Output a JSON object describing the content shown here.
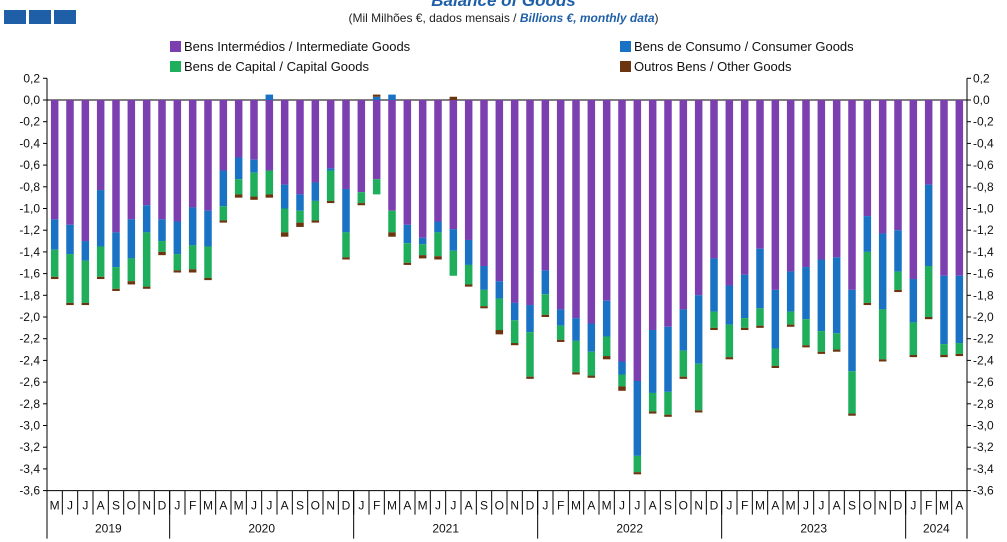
{
  "header": {
    "title": "Balance of Goods",
    "subtitle_pt": "(Mil Milhões €, dados mensais / ",
    "subtitle_en": "Billions €, monthly data",
    "subtitle_close": ")"
  },
  "colors": {
    "brand": "#1f5fa8",
    "title": "#1f5fa8",
    "intermediate": "#7b3fb0",
    "consumer": "#1a72c4",
    "capital": "#1fae5b",
    "other": "#6b3510",
    "axis": "#000000",
    "grid": "#dddddd"
  },
  "chart_data": {
    "type": "bar",
    "stacked": true,
    "ylim": [
      -3.6,
      0.2
    ],
    "yticks": [
      "0,2",
      "0,0",
      "-0,2",
      "-0,4",
      "-0,6",
      "-0,8",
      "-1,0",
      "-1,2",
      "-1,4",
      "-1,6",
      "-1,8",
      "-2,0",
      "-2,2",
      "-2,4",
      "-2,6",
      "-2,8",
      "-3,0",
      "-3,2",
      "-3,4",
      "-3,6"
    ],
    "ytick_values": [
      0.2,
      0.0,
      -0.2,
      -0.4,
      -0.6,
      -0.8,
      -1.0,
      -1.2,
      -1.4,
      -1.6,
      -1.8,
      -2.0,
      -2.2,
      -2.4,
      -2.6,
      -2.8,
      -3.0,
      -3.2,
      -3.4,
      -3.6
    ],
    "legend_position": "top",
    "grid": false,
    "categories": [
      "M",
      "J",
      "J",
      "A",
      "S",
      "O",
      "N",
      "D",
      "J",
      "F",
      "M",
      "A",
      "M",
      "J",
      "J",
      "A",
      "S",
      "O",
      "N",
      "D",
      "J",
      "F",
      "M",
      "A",
      "M",
      "J",
      "J",
      "A",
      "S",
      "O",
      "N",
      "D",
      "J",
      "F",
      "M",
      "A",
      "M",
      "J",
      "J",
      "A",
      "S",
      "O",
      "N",
      "D",
      "J",
      "F",
      "M",
      "A",
      "M",
      "J",
      "J",
      "A",
      "S",
      "O",
      "N",
      "D",
      "J",
      "F",
      "M",
      "A"
    ],
    "years": [
      {
        "label": "2019",
        "count": 8
      },
      {
        "label": "2020",
        "count": 12
      },
      {
        "label": "2021",
        "count": 12
      },
      {
        "label": "2022",
        "count": 12
      },
      {
        "label": "2023",
        "count": 12
      },
      {
        "label": "2024",
        "count": 4
      }
    ],
    "series": [
      {
        "name": "Bens Intermédios / Intermediate Goods",
        "color": "#7b3fb0",
        "values": [
          -1.1,
          -1.15,
          -1.3,
          -0.83,
          -1.22,
          -1.1,
          -0.97,
          -1.1,
          -1.12,
          -0.99,
          -1.02,
          -0.65,
          -0.53,
          -0.55,
          -0.65,
          -0.78,
          -0.87,
          -0.76,
          -0.63,
          -0.82,
          -0.85,
          -0.73,
          -1.02,
          -1.15,
          -1.27,
          -1.12,
          -1.19,
          -1.29,
          -1.53,
          -1.67,
          -1.87,
          -1.89,
          -1.57,
          -1.93,
          -2.01,
          -2.06,
          -1.85,
          -2.41,
          -2.59,
          -2.12,
          -2.09,
          -1.93,
          -1.8,
          -1.46,
          -1.71,
          -1.61,
          -1.37,
          -1.75,
          -1.58,
          -1.54,
          -1.47,
          -1.45,
          -1.75,
          -1.07,
          -1.23,
          -1.2,
          -1.65,
          -0.78,
          -1.62,
          -1.62
        ]
      },
      {
        "name": "Bens de Consumo / Consumer Goods",
        "color": "#1a72c4",
        "values": [
          -0.28,
          -0.27,
          -0.18,
          -0.52,
          -0.32,
          -0.36,
          -0.25,
          -0.2,
          -0.3,
          -0.35,
          -0.33,
          -0.33,
          -0.2,
          -0.12,
          0.05,
          -0.22,
          -0.15,
          -0.17,
          -0.02,
          -0.4,
          0.0,
          0.03,
          0.05,
          -0.17,
          -0.06,
          -0.1,
          -0.2,
          -0.23,
          -0.22,
          -0.16,
          -0.16,
          -0.25,
          -0.22,
          -0.15,
          -0.21,
          -0.26,
          -0.33,
          -0.12,
          -0.69,
          -0.58,
          -0.6,
          -0.38,
          -0.63,
          -0.49,
          -0.36,
          -0.4,
          -0.55,
          -0.54,
          -0.37,
          -0.48,
          -0.66,
          -0.7,
          -0.75,
          -0.33,
          -0.7,
          -0.38,
          -0.4,
          -0.75,
          -0.63,
          -0.62
        ]
      },
      {
        "name": "Bens de Capital / Capital Goods",
        "color": "#1fae5b",
        "values": [
          -0.25,
          -0.45,
          -0.39,
          -0.28,
          -0.2,
          -0.21,
          -0.5,
          -0.1,
          -0.15,
          -0.22,
          -0.29,
          -0.13,
          -0.14,
          -0.22,
          -0.22,
          -0.22,
          -0.11,
          -0.18,
          -0.28,
          -0.23,
          -0.1,
          -0.14,
          -0.2,
          -0.18,
          -0.1,
          -0.22,
          -0.23,
          -0.18,
          -0.15,
          -0.29,
          -0.21,
          -0.41,
          -0.19,
          -0.13,
          -0.29,
          -0.22,
          -0.18,
          -0.11,
          -0.15,
          -0.17,
          -0.21,
          -0.24,
          -0.43,
          -0.15,
          -0.3,
          -0.09,
          -0.16,
          -0.16,
          -0.12,
          -0.24,
          -0.19,
          -0.15,
          -0.39,
          -0.47,
          -0.46,
          -0.17,
          -0.3,
          -0.47,
          -0.1,
          -0.1
        ]
      },
      {
        "name": "Outros Bens / Other Goods",
        "color": "#6b3510",
        "values": [
          -0.02,
          -0.02,
          -0.02,
          -0.02,
          -0.02,
          -0.03,
          -0.02,
          -0.03,
          -0.02,
          -0.03,
          -0.02,
          -0.02,
          -0.03,
          -0.03,
          -0.03,
          -0.04,
          -0.04,
          -0.02,
          -0.02,
          -0.02,
          -0.02,
          0.02,
          -0.04,
          -0.02,
          -0.03,
          -0.03,
          0.03,
          -0.02,
          -0.02,
          -0.04,
          -0.02,
          -0.02,
          -0.02,
          -0.02,
          -0.02,
          -0.02,
          -0.03,
          -0.04,
          -0.02,
          -0.02,
          -0.02,
          -0.02,
          -0.02,
          -0.02,
          -0.02,
          -0.02,
          -0.02,
          -0.02,
          -0.02,
          -0.02,
          -0.02,
          -0.02,
          -0.02,
          -0.02,
          -0.02,
          -0.02,
          -0.02,
          -0.02,
          -0.02,
          -0.02
        ]
      }
    ]
  }
}
